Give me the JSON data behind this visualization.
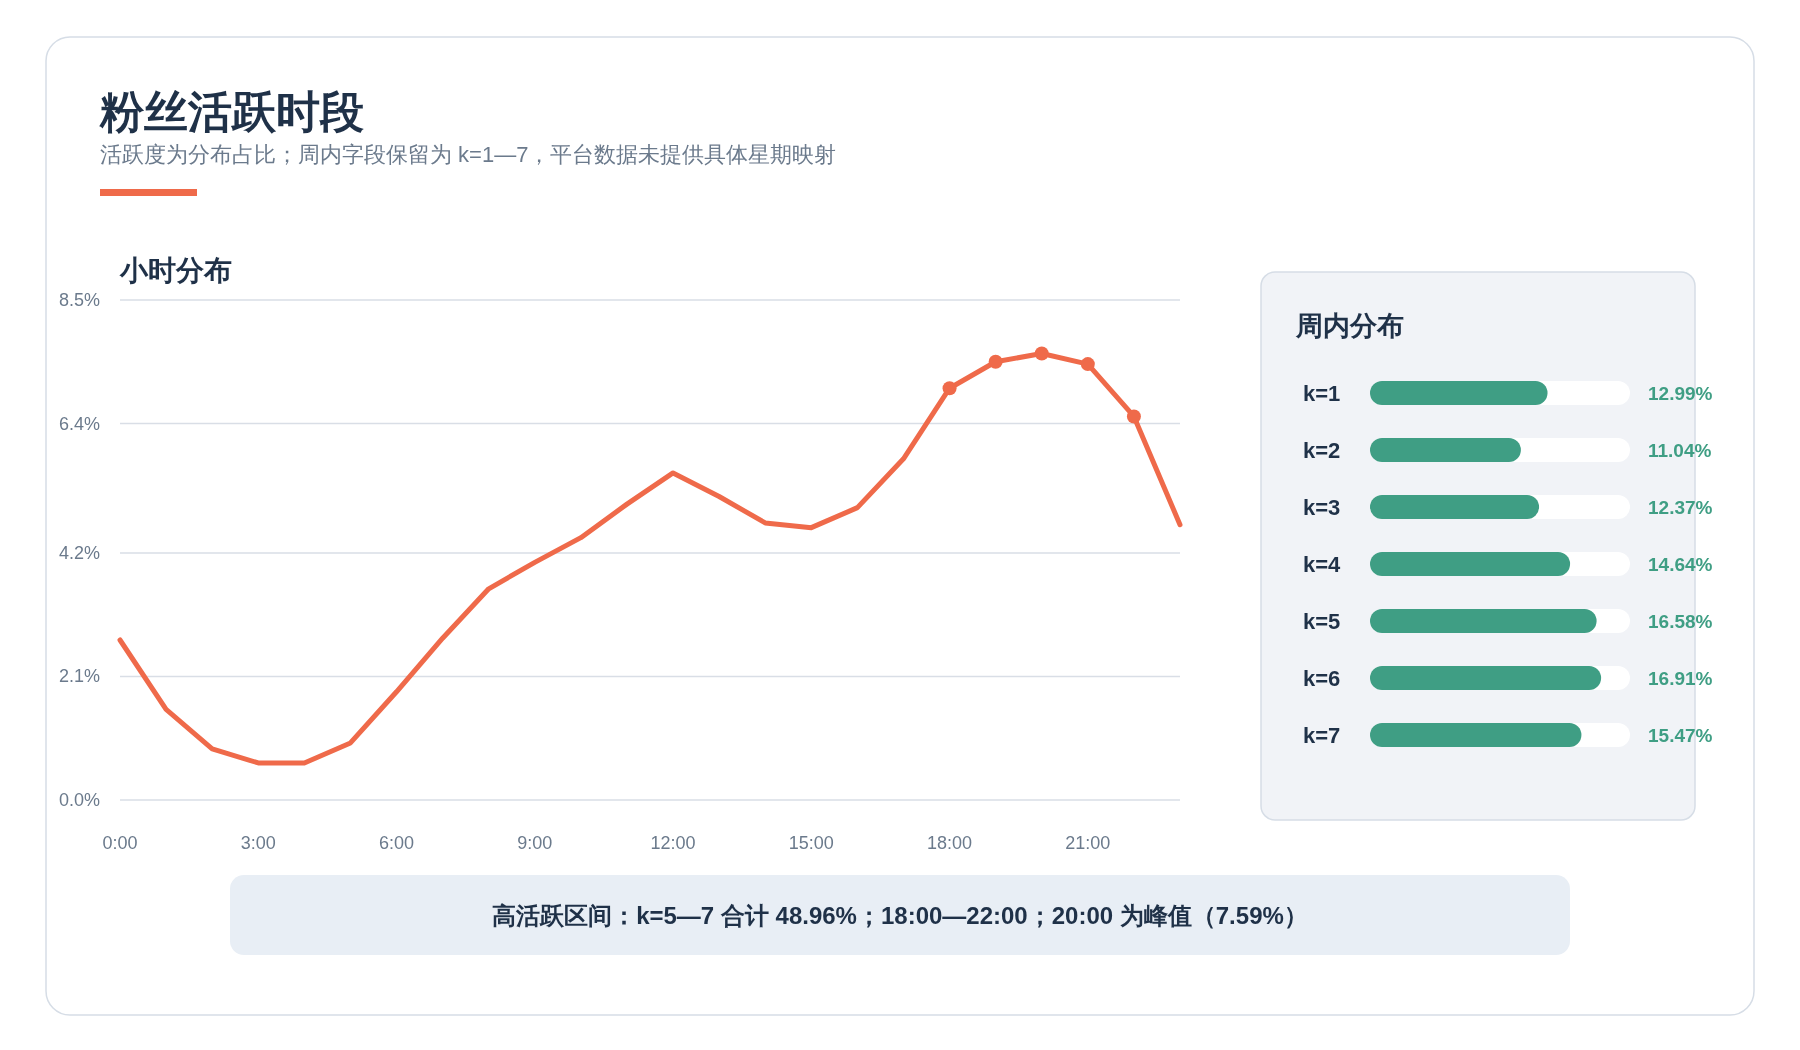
{
  "chart_data": [
    {
      "type": "other",
      "title": "粉丝活跃时段",
      "subtitle": "活跃度为分布占比；周内字段保留为 k=1—7，平台数据未提供具体星期映射",
      "annotations": [
        "高活跃区间：k=5—7 合计 48.96%；18:00—22:00；20:00 为峰值（7.59%）"
      ]
    },
    {
      "type": "line",
      "title": "小时分布",
      "x": [
        0,
        1,
        2,
        3,
        4,
        5,
        6,
        7,
        8,
        9,
        10,
        11,
        12,
        13,
        14,
        15,
        16,
        17,
        18,
        19,
        20,
        21,
        22,
        23
      ],
      "series": [
        {
          "color": "#ef6a4a",
          "values": [
            2.72,
            1.54,
            0.87,
            0.63,
            0.63,
            0.97,
            1.84,
            2.75,
            3.59,
            4.04,
            4.46,
            5.03,
            5.56,
            5.16,
            4.71,
            4.63,
            4.97,
            5.8,
            7.0,
            7.45,
            7.59,
            7.41,
            6.52,
            4.68
          ]
        },
        {
          "type": "scatter",
          "color": "#ef6a4a",
          "x": [
            18,
            19,
            20,
            21,
            22
          ],
          "values": [
            7.0,
            7.45,
            7.59,
            7.41,
            6.52
          ]
        }
      ],
      "xlim": [
        0,
        23
      ],
      "xticks": [
        {
          "value": 0,
          "label": "0:00"
        },
        {
          "value": 3,
          "label": "3:00"
        },
        {
          "value": 6,
          "label": "6:00"
        },
        {
          "value": 9,
          "label": "9:00"
        },
        {
          "value": 12,
          "label": "12:00"
        },
        {
          "value": 15,
          "label": "15:00"
        },
        {
          "value": 18,
          "label": "18:00"
        },
        {
          "value": 21,
          "label": "21:00"
        }
      ],
      "ylim": [
        0,
        8.5
      ],
      "yticks": [
        {
          "value": 0,
          "label": "0.0%"
        },
        {
          "value": 2.1,
          "label": "2.1%"
        },
        {
          "value": 4.2,
          "label": "4.2%"
        },
        {
          "value": 6.4,
          "label": "6.4%"
        },
        {
          "value": 8.5,
          "label": "8.5%"
        }
      ],
      "grid": "y"
    },
    {
      "type": "bar",
      "orientation": "horizontal",
      "title": "周内分布",
      "categories": [
        "k=1",
        "k=2",
        "k=3",
        "k=4",
        "k=5",
        "k=6",
        "k=7"
      ],
      "values": [
        12.99,
        11.04,
        12.37,
        14.64,
        16.58,
        16.91,
        15.47
      ],
      "color": "#3f9e84",
      "value_labels": [
        "12.99%",
        "11.04%",
        "12.37%",
        "14.64%",
        "16.58%",
        "16.91%",
        "15.47%"
      ]
    }
  ]
}
